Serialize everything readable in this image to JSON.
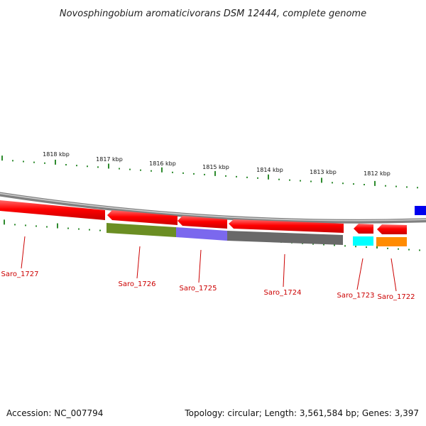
{
  "title": "Novosphingobium aromaticivorans DSM 12444, complete genome",
  "footer": {
    "accession": "Accession: NC_007794",
    "summary": "Topology: circular; Length: 3,561,584 bp; Genes: 3,397"
  },
  "ruler": {
    "labels": [
      "1818 kbp",
      "1817 kbp",
      "1816 kbp",
      "1815 kbp",
      "1814 kbp",
      "1813 kbp",
      "1812 kbp"
    ]
  },
  "genes": [
    {
      "name": "Saro_1727",
      "color": "#ff0000"
    },
    {
      "name": "Saro_1726",
      "color": "#6b8e23"
    },
    {
      "name": "Saro_1725",
      "color": "#7b68ee"
    },
    {
      "name": "Saro_1724",
      "color": "#696969"
    },
    {
      "name": "Saro_1723",
      "color": "#00ffff"
    },
    {
      "name": "Saro_1722",
      "color": "#ff8c00"
    }
  ],
  "colors": {
    "backbone": "#808080",
    "forward_feature": "#ff0000",
    "edge_feature": "#0000ee",
    "tick": "#2e8b2e",
    "label": "#cc0000"
  }
}
